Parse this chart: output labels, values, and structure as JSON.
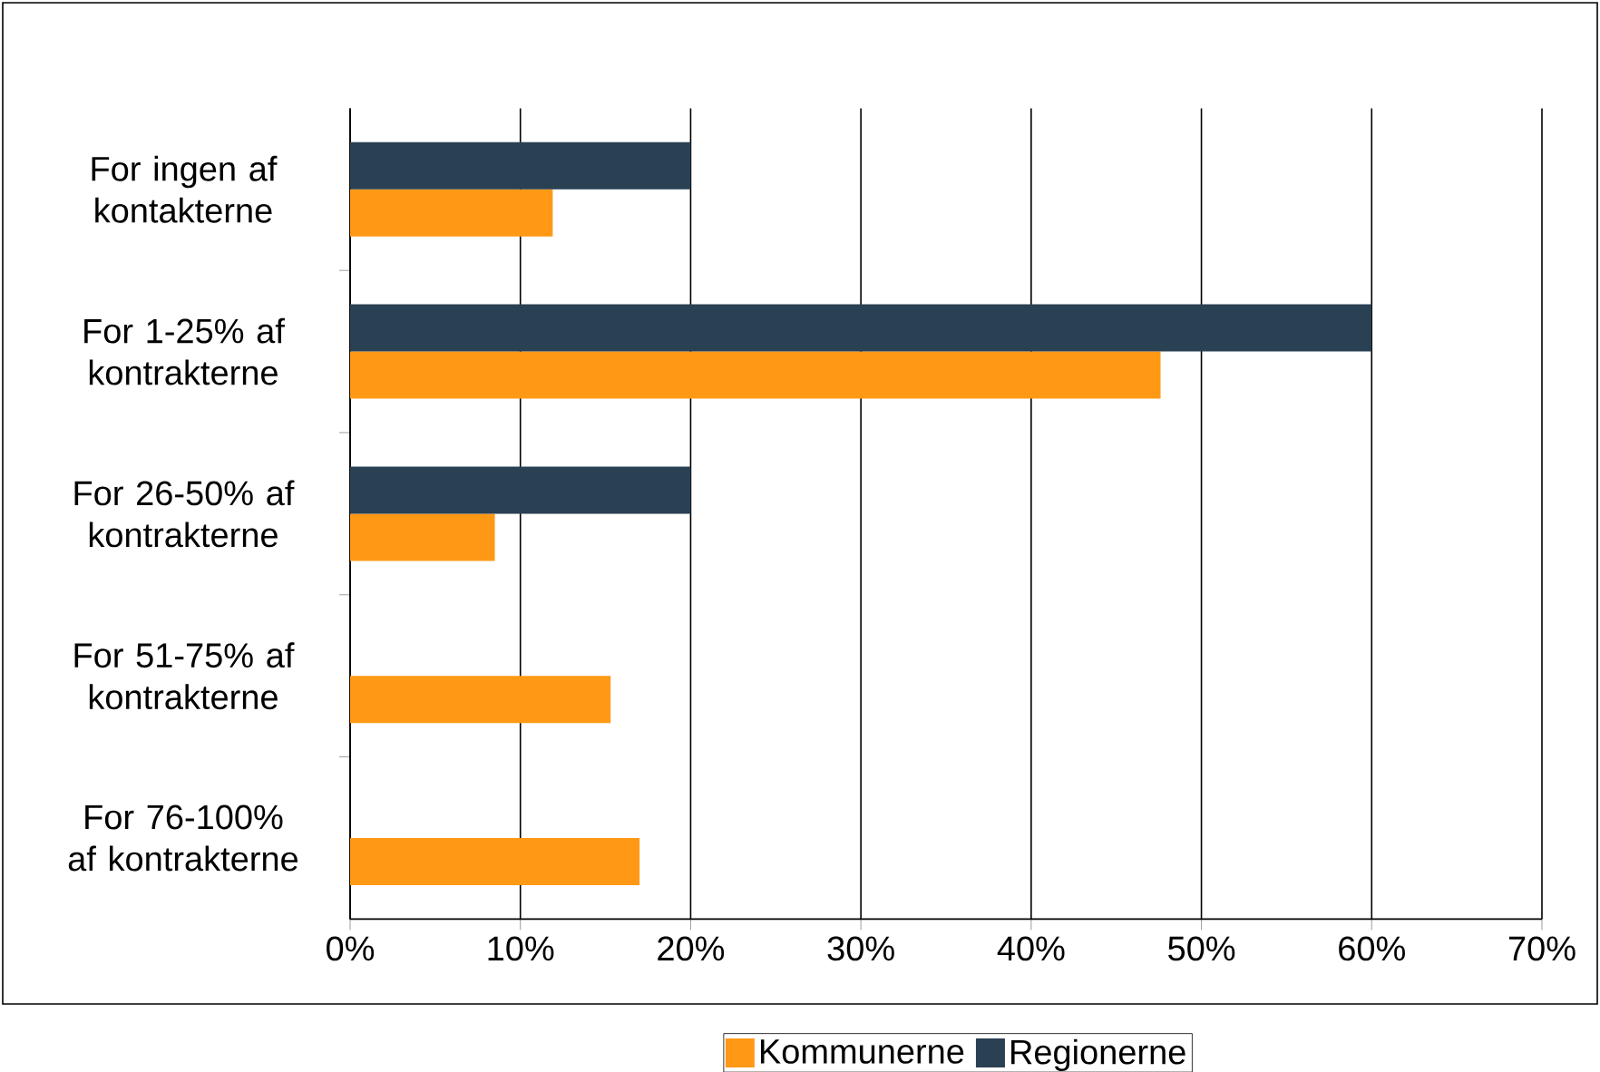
{
  "chart_data": {
    "type": "bar",
    "orientation": "horizontal",
    "categories": [
      "For ingen af kontakterne",
      "For 1-25% af kontrakterne",
      "For 26-50% af kontrakterne",
      "For 51-75% af kontrakterne",
      "For 76-100% af kontrakterne"
    ],
    "series": [
      {
        "name": "Kommunerne",
        "color": "#ff9915",
        "values": [
          11.9,
          47.6,
          8.5,
          15.3,
          17.0
        ]
      },
      {
        "name": "Regionerne",
        "color": "#2a4053",
        "values": [
          20,
          60,
          20,
          null,
          null
        ]
      }
    ],
    "xlim": [
      0,
      70
    ],
    "xticks": [
      {
        "value": 0,
        "label": "0%"
      },
      {
        "value": 10,
        "label": "10%"
      },
      {
        "value": 20,
        "label": "20%"
      },
      {
        "value": 30,
        "label": "30%"
      },
      {
        "value": 40,
        "label": "40%"
      },
      {
        "value": 50,
        "label": "50%"
      },
      {
        "value": 60,
        "label": "60%"
      },
      {
        "value": 70,
        "label": "70%"
      }
    ],
    "grid": "x",
    "legend": "bottom"
  }
}
